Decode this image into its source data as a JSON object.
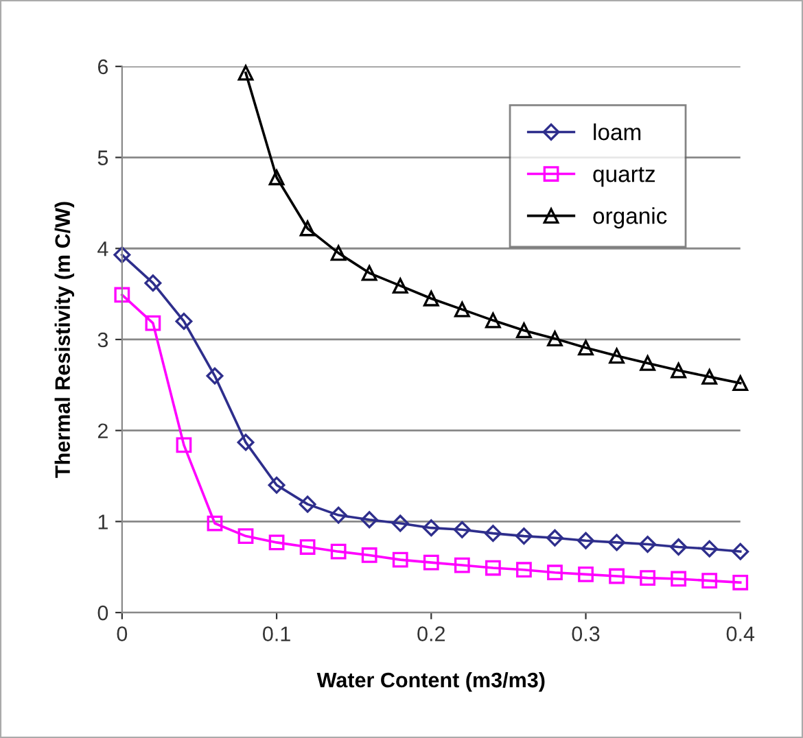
{
  "chart_data": {
    "type": "line",
    "xlabel": "Water Content (m3/m3)",
    "ylabel": "Thermal Resistivity (m C/W)",
    "xlim": [
      0,
      0.4
    ],
    "xticks": [
      0,
      0.1,
      0.2,
      0.3,
      0.4
    ],
    "ylim": [
      0,
      6
    ],
    "yticks": [
      0,
      1,
      2,
      3,
      4,
      5,
      6
    ],
    "grid": "y",
    "legend": "top right",
    "series": [
      {
        "name": "loam",
        "color": "#2e2e8c",
        "marker": "diamond",
        "x": [
          0,
          0.02,
          0.04,
          0.06,
          0.08,
          0.1,
          0.12,
          0.14,
          0.16,
          0.18,
          0.2,
          0.22,
          0.24,
          0.26,
          0.28,
          0.3,
          0.32,
          0.34,
          0.36,
          0.38,
          0.4
        ],
        "values": [
          3.93,
          3.62,
          3.2,
          2.6,
          1.87,
          1.4,
          1.19,
          1.07,
          1.02,
          0.98,
          0.93,
          0.91,
          0.87,
          0.84,
          0.82,
          0.79,
          0.77,
          0.75,
          0.72,
          0.7,
          0.67
        ]
      },
      {
        "name": "quartz",
        "color": "#ff00ff",
        "marker": "square",
        "x": [
          0,
          0.02,
          0.04,
          0.06,
          0.08,
          0.1,
          0.12,
          0.14,
          0.16,
          0.18,
          0.2,
          0.22,
          0.24,
          0.26,
          0.28,
          0.3,
          0.32,
          0.34,
          0.36,
          0.38,
          0.4
        ],
        "values": [
          3.49,
          3.18,
          1.84,
          0.98,
          0.84,
          0.77,
          0.72,
          0.67,
          0.63,
          0.58,
          0.55,
          0.52,
          0.49,
          0.47,
          0.44,
          0.42,
          0.4,
          0.38,
          0.37,
          0.35,
          0.33
        ]
      },
      {
        "name": "organic",
        "color": "#000000",
        "marker": "triangle",
        "x": [
          0.08,
          0.1,
          0.12,
          0.14,
          0.16,
          0.18,
          0.2,
          0.22,
          0.24,
          0.26,
          0.28,
          0.3,
          0.32,
          0.34,
          0.36,
          0.38,
          0.4
        ],
        "values": [
          5.93,
          4.78,
          4.22,
          3.95,
          3.73,
          3.59,
          3.45,
          3.33,
          3.21,
          3.1,
          3.01,
          2.91,
          2.82,
          2.74,
          2.66,
          2.59,
          2.52
        ]
      }
    ]
  }
}
